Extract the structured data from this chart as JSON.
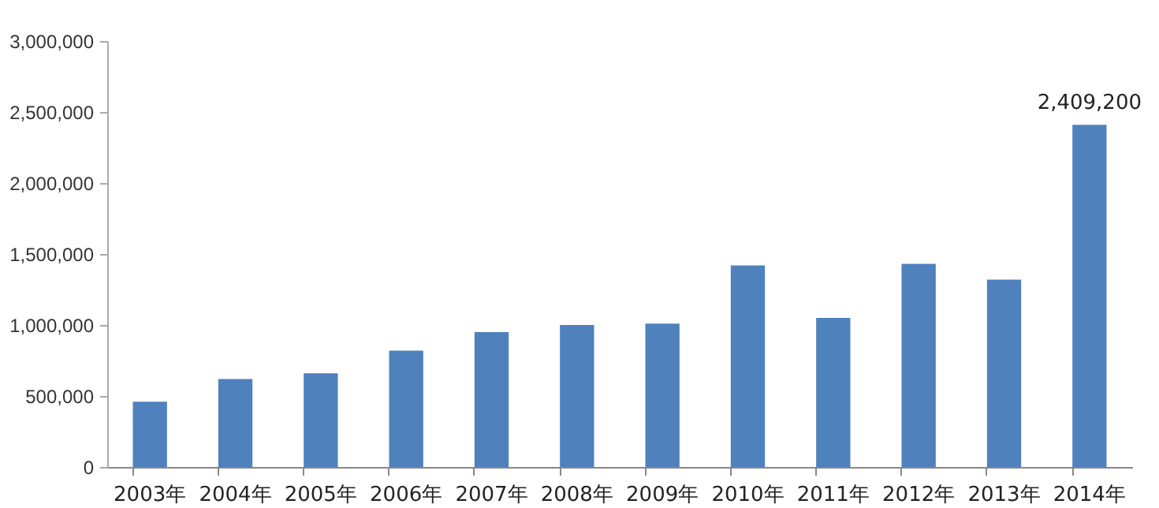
{
  "chart_data": {
    "type": "bar",
    "categories": [
      "2003年",
      "2004年",
      "2005年",
      "2006年",
      "2007年",
      "2008年",
      "2009年",
      "2010年",
      "2011年",
      "2012年",
      "2013年",
      "2014年"
    ],
    "values": [
      460000,
      620000,
      660000,
      820000,
      950000,
      1000000,
      1010000,
      1420000,
      1050000,
      1430000,
      1320000,
      2409200
    ],
    "value_labels": [
      null,
      null,
      null,
      null,
      null,
      null,
      null,
      null,
      null,
      null,
      null,
      "2,409,200"
    ],
    "color": "#4f81bd",
    "ylim": [
      0,
      3000000
    ],
    "yticks": [
      {
        "value": 0,
        "label": "0"
      },
      {
        "value": 500000,
        "label": "500,000"
      },
      {
        "value": 1000000,
        "label": "1,000,000"
      },
      {
        "value": 1500000,
        "label": "1,500,000"
      },
      {
        "value": 2000000,
        "label": "2,000,000"
      },
      {
        "value": 2500000,
        "label": "2,500,000"
      },
      {
        "value": 3000000,
        "label": "3,000,000"
      }
    ],
    "grid": false
  }
}
